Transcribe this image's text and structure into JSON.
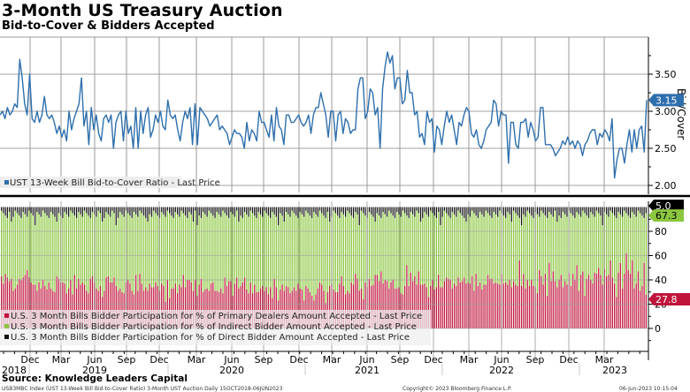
{
  "header": {
    "title": "3-Month US Treasury Auction",
    "subtitle": "Bid-to-Cover & Bidders Accepted"
  },
  "footer": {
    "source": "Source: Knowledge Leaders Capital",
    "ticker_info": "USB3MBC Index (UST 13-Week Bill Bid-to-Cover Ratio) 3-Month UST Auction  Daily 15OCT2018-06JUN2023",
    "copyright": "Copyright© 2023 Bloomberg Finance L.P.",
    "timestamp": "06-Jun-2023 10:15:04"
  },
  "colors": {
    "bid_to_cover_line": "#2e6fad",
    "primary_dealers": "#c0143c",
    "indirect_bidders": "#8cc63f",
    "direct_bidders": "#111111"
  },
  "chart_data": [
    {
      "type": "line",
      "title": "Bid-to-Cover",
      "ylabel": "Bid/Cover",
      "ylim": [
        1.9,
        3.95
      ],
      "yticks": [
        "2.00",
        "2.50",
        "3.00",
        "3.50"
      ],
      "grid": true,
      "legend": "bottom-left",
      "x_range": [
        "2018-10-15",
        "2023-06-06"
      ],
      "last_value_label": "3.15",
      "series": [
        {
          "name": "UST 13-Week Bill Bid-to-Cover Ratio - Last Price",
          "values": [
            2.95,
            3.0,
            2.9,
            3.05,
            2.95,
            3.0,
            3.1,
            3.05,
            3.7,
            3.45,
            3.1,
            2.95,
            3.5,
            2.9,
            2.85,
            3.0,
            2.85,
            2.95,
            3.2,
            2.95,
            2.9,
            2.95,
            2.85,
            2.7,
            2.8,
            2.65,
            2.75,
            2.6,
            3.0,
            2.75,
            2.9,
            3.0,
            3.1,
            3.45,
            2.8,
            3.0,
            2.55,
            3.05,
            2.75,
            2.95,
            2.7,
            2.6,
            2.9,
            2.95,
            2.85,
            2.95,
            2.5,
            2.85,
            2.95,
            3.0,
            2.6,
            3.0,
            2.7,
            2.8,
            2.5,
            3.05,
            2.5,
            3.0,
            2.7,
            2.95,
            3.05,
            2.65,
            2.75,
            2.95,
            2.85,
            3.0,
            2.8,
            2.75,
            3.15,
            2.95,
            2.9,
            2.95,
            2.75,
            2.6,
            2.85,
            3.0,
            2.9,
            3.05,
            2.55,
            3.1,
            2.55,
            3.05,
            3.0,
            2.95,
            2.9,
            2.8,
            2.85,
            2.9,
            2.95,
            2.75,
            2.8,
            2.75,
            2.7,
            2.55,
            2.65,
            2.75,
            2.7,
            2.7,
            2.65,
            2.5,
            2.85,
            2.6,
            2.75,
            2.7,
            2.6,
            3.0,
            2.85,
            2.85,
            2.75,
            2.65,
            2.95,
            2.6,
            3.05,
            2.8,
            2.75,
            2.55,
            2.95,
            2.95,
            2.85,
            2.85,
            2.9,
            2.95,
            2.85,
            2.8,
            2.85,
            2.95,
            2.7,
            2.95,
            3.05,
            3.05,
            3.25,
            3.1,
            2.95,
            2.65,
            3.0,
            3.0,
            2.6,
            2.95,
            3.0,
            2.7,
            2.9,
            2.85,
            2.7,
            2.75,
            2.75,
            3.3,
            3.45,
            3.45,
            2.9,
            3.0,
            3.3,
            3.25,
            2.95,
            3.05,
            2.5,
            3.3,
            3.6,
            3.8,
            3.65,
            3.75,
            3.3,
            3.45,
            3.45,
            3.1,
            3.15,
            3.55,
            3.25,
            3.25,
            2.95,
            3.0,
            2.65,
            2.7,
            2.55,
            3.0,
            2.85,
            2.9,
            2.45,
            2.8,
            2.75,
            2.55,
            2.8,
            3.0,
            2.85,
            2.95,
            2.75,
            2.55,
            2.85,
            2.8,
            2.95,
            3.05,
            3.0,
            2.7,
            2.65,
            2.75,
            2.55,
            2.5,
            2.6,
            2.75,
            2.8,
            2.85,
            3.15,
            3.1,
            2.8,
            3.0,
            2.95,
            2.95,
            2.3,
            2.85,
            2.85,
            2.55,
            2.5,
            2.85,
            2.85,
            2.9,
            2.65,
            2.85,
            2.75,
            2.6,
            2.65,
            3.05,
            3.05,
            2.55,
            2.55,
            2.55,
            2.5,
            2.4,
            2.45,
            2.5,
            2.6,
            2.55,
            2.65,
            2.55,
            2.6,
            2.5,
            2.6,
            2.55,
            2.4,
            2.55,
            2.6,
            2.7,
            2.75,
            2.75,
            2.55,
            2.7,
            2.65,
            2.75,
            2.7,
            2.6,
            2.9,
            2.1,
            2.35,
            2.5,
            2.5,
            2.3,
            2.55,
            2.75,
            2.45,
            2.75,
            2.5,
            2.75,
            2.8,
            2.45,
            3.15
          ]
        }
      ]
    },
    {
      "type": "bar",
      "stacked": true,
      "title": "Bidders Accepted (%)",
      "ylabel": "",
      "ylim": [
        -15,
        102
      ],
      "yticks": [
        "0",
        "20",
        "40",
        "60",
        "80"
      ],
      "grid": true,
      "legend": "bottom-left",
      "last_value_labels": {
        "direct": "5.0",
        "indirect": "67.3",
        "primary": "27.8"
      },
      "series": [
        {
          "name": "U.S. 3 Month Bills Bidder Participation for % of Primary Dealers Amount Accepted - Last Price",
          "values": [
            43,
            37,
            45,
            42,
            39,
            41,
            31,
            33,
            36,
            41,
            40,
            42,
            44,
            48,
            42,
            38,
            36,
            36,
            31,
            38,
            33,
            40,
            35,
            32,
            38,
            33,
            31,
            30,
            43,
            41,
            38,
            38,
            37,
            29,
            33,
            40,
            28,
            44,
            33,
            41,
            36,
            38,
            36,
            31,
            29,
            41,
            43,
            38,
            33,
            31,
            35,
            26,
            31,
            42,
            43,
            38,
            38,
            42,
            35,
            31,
            33,
            30,
            29,
            38,
            40,
            37,
            31,
            28,
            44,
            31,
            45,
            37,
            31,
            34,
            31,
            37,
            34,
            34,
            38,
            35,
            31,
            37,
            35,
            22,
            40,
            25,
            33,
            33,
            37,
            29,
            36,
            34,
            44,
            34,
            40,
            40,
            38,
            31,
            40,
            27,
            36,
            41,
            30,
            32,
            33,
            31,
            37,
            38,
            31,
            31,
            30,
            33,
            29,
            42,
            35,
            39,
            39,
            27,
            37,
            42,
            33,
            35,
            38,
            42,
            32,
            29,
            38,
            29,
            36,
            30,
            30,
            33,
            35,
            31,
            34,
            28,
            34,
            25,
            41,
            34,
            23,
            32,
            36,
            31,
            35,
            34,
            29,
            31,
            34,
            31,
            37,
            33,
            32,
            23,
            35,
            33,
            30,
            27,
            23,
            28,
            33,
            38,
            36,
            31,
            21,
            30,
            35,
            37,
            32,
            30,
            30,
            37,
            43,
            35,
            28,
            31,
            29,
            38,
            36,
            45,
            41,
            31,
            33,
            24,
            38,
            34,
            41,
            35,
            36,
            44,
            44,
            39,
            47,
            37,
            40,
            39,
            33,
            38,
            40,
            33,
            33,
            34,
            29,
            28,
            35,
            52,
            35,
            46,
            39,
            43,
            36,
            47,
            36,
            36,
            37,
            34,
            26,
            35,
            40,
            32,
            34,
            44,
            34,
            34,
            39,
            42,
            41,
            40,
            33,
            37,
            35,
            42,
            38,
            39,
            42,
            37,
            38,
            37,
            43,
            31,
            45,
            35,
            38,
            32,
            36,
            36,
            44,
            41,
            41,
            37,
            38,
            37,
            36,
            45,
            37,
            38,
            36,
            40,
            34,
            39,
            36,
            35,
            56,
            35,
            45,
            33,
            40,
            35,
            40,
            35,
            34,
            29,
            48,
            43,
            36,
            45,
            27,
            54,
            39,
            47,
            39,
            34,
            40,
            44,
            34,
            39,
            36,
            46,
            35,
            45,
            40,
            52,
            31,
            44,
            47,
            27,
            41,
            44,
            40,
            37,
            46,
            45,
            50,
            44,
            36,
            49,
            43,
            44,
            56,
            42,
            37,
            26,
            46,
            54,
            33,
            45,
            62,
            48,
            45,
            56,
            33,
            37,
            47,
            31,
            35,
            54,
            27.8
          ]
        },
        {
          "name": "U.S. 3 Month Bills Bidder Participation for % of Indirect Bidder Amount Accepted - Last Price",
          "values": "remainder (approx. 100 - primary - direct); last value 67.3"
        },
        {
          "name": "U.S. 3 Month Bills Bidder Participation for % of Direct Bidder Amount Accepted - Last Price",
          "values": "small, typically 2-10%; last value 5.0"
        }
      ]
    }
  ],
  "x_axis": {
    "months": [
      {
        "label": "Dec"
      },
      {
        "label": "Mar"
      },
      {
        "label": "Jun"
      },
      {
        "label": "Sep"
      },
      {
        "label": "Dec"
      },
      {
        "label": "Mar"
      },
      {
        "label": "Jun"
      },
      {
        "label": "Sep"
      },
      {
        "label": "Dec"
      },
      {
        "label": "Mar"
      },
      {
        "label": "Jun"
      },
      {
        "label": "Sep"
      },
      {
        "label": "Dec"
      },
      {
        "label": "Mar"
      },
      {
        "label": "Jun"
      },
      {
        "label": "Sep"
      },
      {
        "label": "Dec"
      },
      {
        "label": "Mar"
      }
    ],
    "years": [
      {
        "label": "2018"
      },
      {
        "label": "2019"
      },
      {
        "label": "2020"
      },
      {
        "label": "2021"
      },
      {
        "label": "2022"
      },
      {
        "label": "2023"
      }
    ]
  },
  "legends": {
    "top": [
      {
        "label": "UST 13-Week Bill Bid-to-Cover Ratio - Last Price",
        "color": "#2e6fad"
      }
    ],
    "bottom": [
      {
        "label": "U.S. 3 Month Bills Bidder Participation for % of Primary Dealers Amount Accepted - Last Price",
        "color": "#c0143c"
      },
      {
        "label": "U.S. 3 Month Bills Bidder Participation for % of Indirect Bidder Amount Accepted - Last Price",
        "color": "#8cc63f"
      },
      {
        "label": "U.S. 3 Month Bills Bidder Participation for % of Direct Bidder Amount Accepted - Last Price",
        "color": "#111111"
      }
    ]
  }
}
